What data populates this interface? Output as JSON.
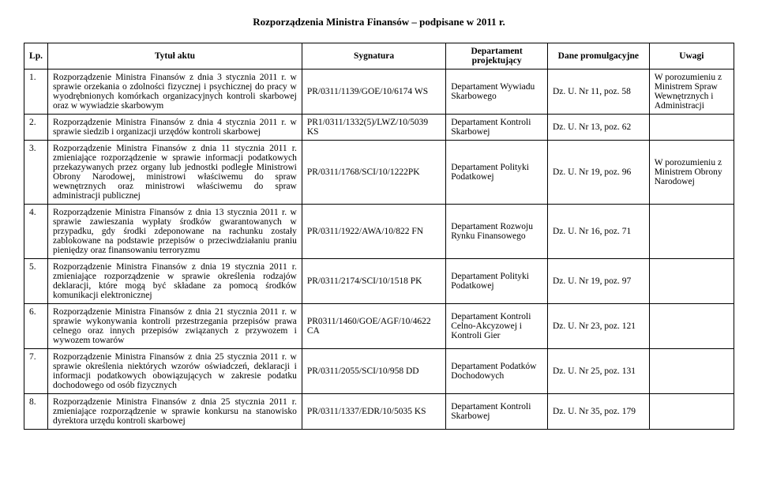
{
  "doc_title": "Rozporządzenia Ministra Finansów – podpisane w 2011 r.",
  "headers": {
    "lp": "Lp.",
    "tytul": "Tytuł aktu",
    "sygnatura": "Sygnatura",
    "departament": "Departament projektujący",
    "dane": "Dane promulgacyjne",
    "uwagi": "Uwagi"
  },
  "rows": [
    {
      "lp": "1.",
      "tytul": "Rozporządzenie Ministra Finansów z dnia 3 stycznia 2011 r. w sprawie orzekania o zdolności fizycznej i psychicznej do pracy w wyodrębnionych komórkach organizacyjnych kontroli skarbowej oraz w wywiadzie skarbowym",
      "sygnatura": "PR/0311/1139/GOE/10/6174 WS",
      "departament": "Departament Wywiadu Skarbowego",
      "dane": "Dz. U. Nr 11, poz. 58",
      "uwagi": "W porozumieniu z Ministrem Spraw Wewnętrznych i Administracji"
    },
    {
      "lp": "2.",
      "tytul": "Rozporządzenie Ministra Finansów z dnia 4 stycznia 2011 r. w sprawie siedzib i organizacji urzędów kontroli skarbowej",
      "sygnatura": "PR1/0311/1332(5)/LWZ/10/5039 KS",
      "departament": "Departament Kontroli Skarbowej",
      "dane": "Dz. U. Nr 13, poz. 62",
      "uwagi": ""
    },
    {
      "lp": "3.",
      "tytul": "Rozporządzenie Ministra Finansów z dnia 11 stycznia 2011 r. zmieniające rozporządzenie w sprawie informacji podatkowych przekazywanych przez organy lub jednostki podległe Ministrowi Obrony Narodowej, ministrowi właściwemu do spraw wewnętrznych oraz ministrowi właściwemu do spraw administracji publicznej",
      "sygnatura": "PR/0311/1768/SCI/10/1222PK",
      "departament": "Departament Polityki Podatkowej",
      "dane": "Dz. U. Nr 19, poz. 96",
      "uwagi": "W porozumieniu z Ministrem Obrony Narodowej"
    },
    {
      "lp": "4.",
      "tytul": "Rozporządzenie Ministra Finansów z dnia 13 stycznia 2011 r. w sprawie zawieszania wypłaty środków gwarantowanych w przypadku, gdy środki zdeponowane na rachunku zostały zablokowane na podstawie przepisów o przeciwdziałaniu praniu pieniędzy oraz finansowaniu terroryzmu",
      "sygnatura": "PR/0311/1922/AWA/10/822 FN",
      "departament": "Departament Rozwoju Rynku Finansowego",
      "dane": "Dz. U. Nr 16, poz. 71",
      "uwagi": ""
    },
    {
      "lp": "5.",
      "tytul": "Rozporządzenie Ministra Finansów z dnia 19 stycznia 2011 r. zmieniające rozporządzenie w sprawie określenia rodzajów deklaracji, które mogą być składane za pomocą środków komunikacji elektronicznej",
      "sygnatura": "PR/0311/2174/SCI/10/1518 PK",
      "departament": "Departament Polityki Podatkowej",
      "dane": "Dz. U. Nr 19, poz. 97",
      "uwagi": ""
    },
    {
      "lp": "6.",
      "tytul": "Rozporządzenie Ministra Finansów z dnia 21 stycznia 2011 r. w sprawie wykonywania kontroli przestrzegania przepisów prawa celnego oraz innych przepisów związanych z przywozem i wywozem towarów",
      "sygnatura": "PR0311/1460/GOE/AGF/10/4622 CA",
      "departament": "Departament Kontroli Celno-Akcyzowej i Kontroli Gier",
      "dane": "Dz. U. Nr 23, poz. 121",
      "uwagi": ""
    },
    {
      "lp": "7.",
      "tytul": "Rozporządzenie Ministra Finansów z dnia 25 stycznia 2011 r. w sprawie określenia niektórych wzorów oświadczeń, deklaracji i informacji podatkowych obowiązujących w zakresie podatku dochodowego od osób fizycznych",
      "sygnatura": "PR/0311/2055/SCI/10/958 DD",
      "departament": "Departament Podatków Dochodowych",
      "dane": "Dz. U. Nr 25, poz. 131",
      "uwagi": ""
    },
    {
      "lp": "8.",
      "tytul": "Rozporządzenie Ministra Finansów z dnia 25 stycznia 2011 r. zmieniające rozporządzenie w sprawie konkursu na stanowisko dyrektora urzędu kontroli skarbowej",
      "sygnatura": "PR/0311/1337/EDR/10/5035 KS",
      "departament": "Departament Kontroli Skarbowej",
      "dane": "Dz. U. Nr 35, poz. 179",
      "uwagi": ""
    }
  ]
}
